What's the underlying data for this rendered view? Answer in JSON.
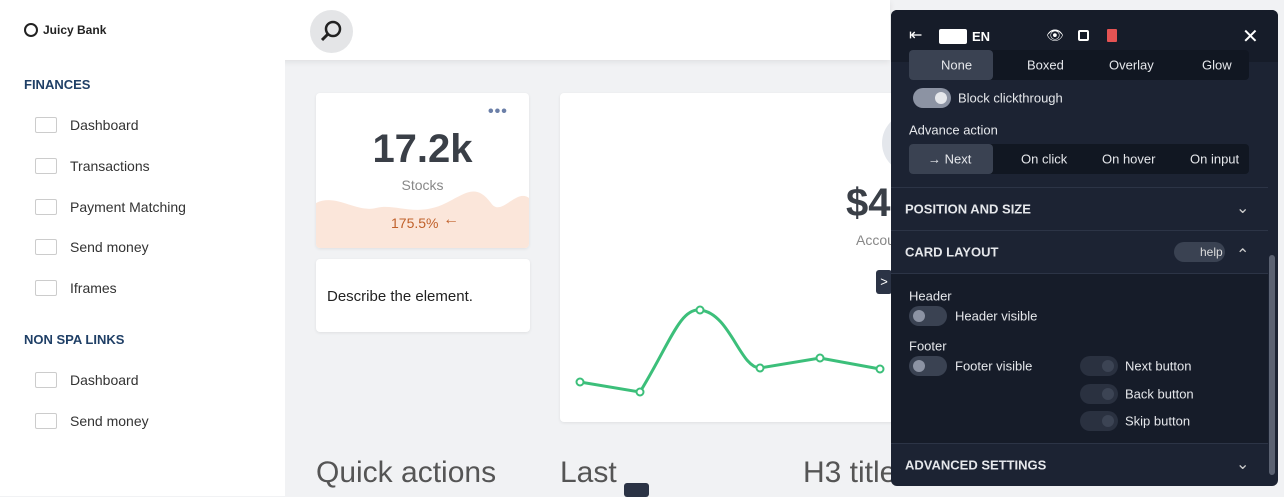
{
  "header": {
    "brand": "Juicy Bank"
  },
  "sidebar": {
    "sections": [
      {
        "title": "FINANCES",
        "items": [
          "Dashboard",
          "Transactions",
          "Payment Matching",
          "Send money",
          "Iframes"
        ]
      },
      {
        "title": "NON SPA LINKS",
        "items": [
          "Dashboard",
          "Send money"
        ]
      }
    ]
  },
  "stat_card": {
    "value": "17.2k",
    "label": "Stocks",
    "change": "175.5%"
  },
  "tooltip": {
    "text": "Describe the element."
  },
  "balance_card": {
    "value": "$4",
    "label": "Accou"
  },
  "sections": [
    "Quick actions",
    "Last",
    "H3 title"
  ],
  "editor": {
    "language": "EN",
    "display_modes": [
      "None",
      "Boxed",
      "Overlay",
      "Glow"
    ],
    "block_clickthrough": "Block clickthrough",
    "advance_action": {
      "label": "Advance action",
      "options": [
        "Next",
        "On click",
        "On hover",
        "On input"
      ]
    },
    "position_and_size": "POSITION AND SIZE",
    "card_layout": {
      "title": "CARD LAYOUT",
      "help": "help",
      "header_label": "Header",
      "header_visible": "Header visible",
      "footer_label": "Footer",
      "footer_visible": "Footer visible",
      "buttons": [
        "Next button",
        "Back button",
        "Skip button"
      ]
    },
    "advanced_settings": "ADVANCED SETTINGS"
  }
}
